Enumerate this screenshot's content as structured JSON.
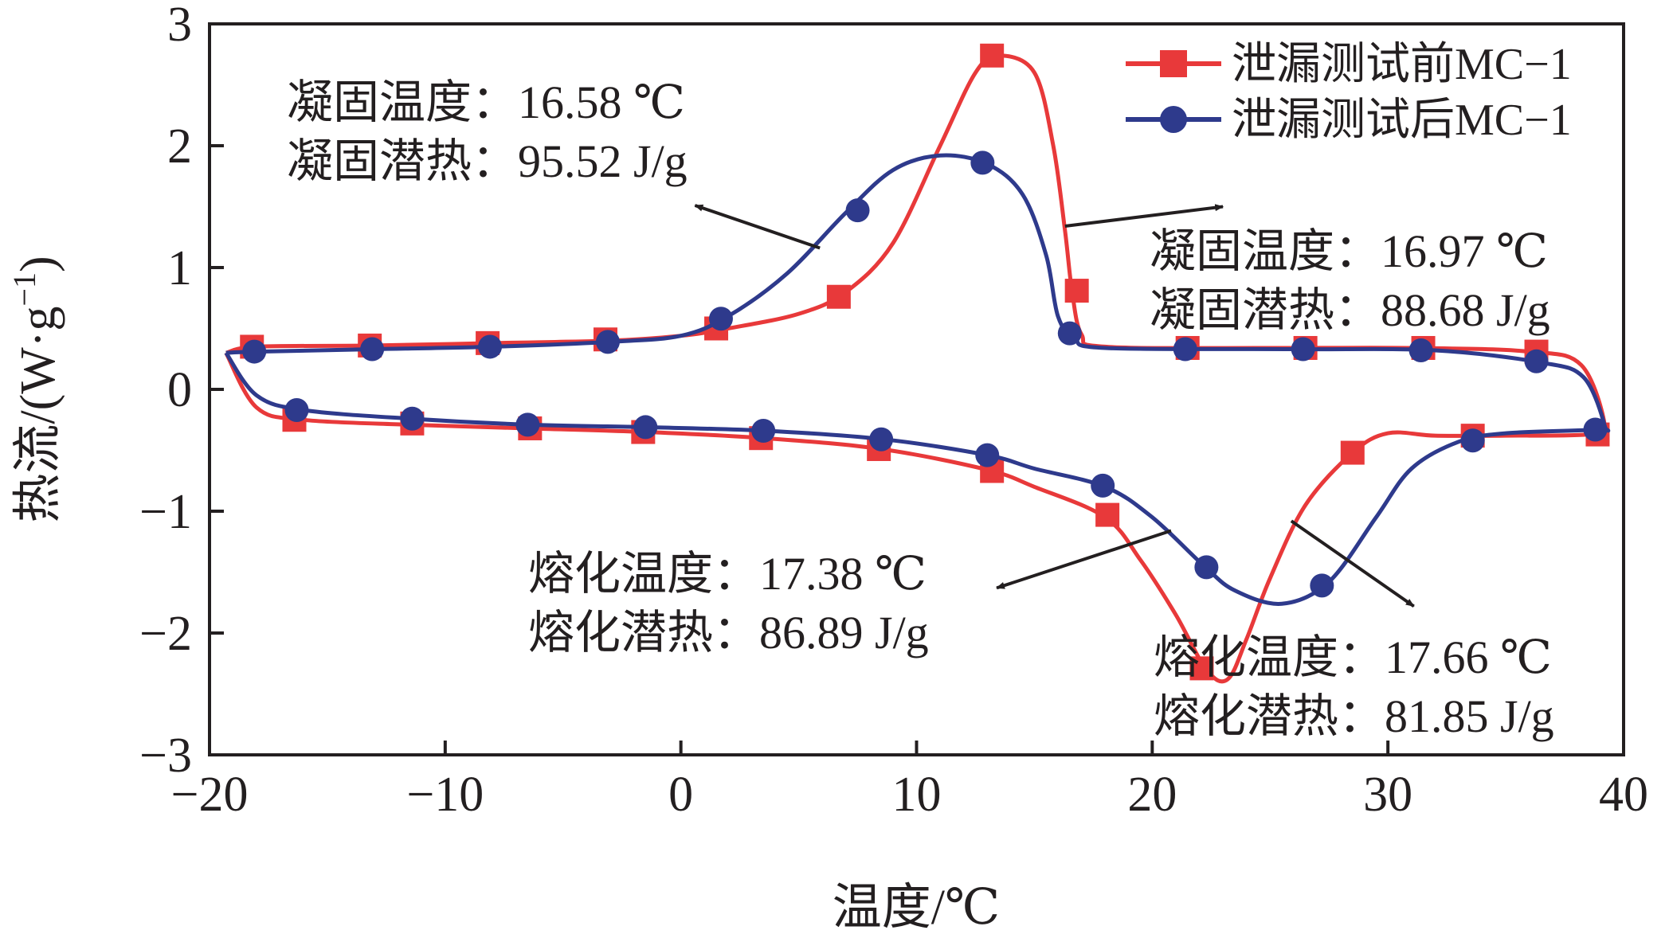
{
  "chart_data": {
    "type": "line",
    "xlabel": "温度/℃",
    "ylabel": "热流/(W·g",
    "ylabel_sup": "−1",
    "ylabel_tail": ")",
    "xlim": [
      -20,
      40
    ],
    "ylim": [
      -3,
      3
    ],
    "x_ticks": [
      -20,
      -10,
      0,
      10,
      20,
      30,
      40
    ],
    "x_tick_labels": [
      "−20",
      "−10",
      "0",
      "10",
      "20",
      "30",
      "40"
    ],
    "y_ticks": [
      -3,
      -2,
      -1,
      0,
      1,
      2,
      3
    ],
    "y_tick_labels": [
      "−3",
      "−2",
      "−1",
      "0",
      "1",
      "2",
      "3"
    ],
    "legend_position": "top-right",
    "series": [
      {
        "name": "泄漏测试前MC−1",
        "color": "#e8393a",
        "marker": "square",
        "curve": [
          [
            -19.3,
            0.3
          ],
          [
            -18,
            0.35
          ],
          [
            -13,
            0.36
          ],
          [
            -8,
            0.38
          ],
          [
            -3,
            0.4
          ],
          [
            0,
            0.44
          ],
          [
            2,
            0.5
          ],
          [
            5,
            0.62
          ],
          [
            7,
            0.8
          ],
          [
            9,
            1.2
          ],
          [
            11,
            2.0
          ],
          [
            12.5,
            2.6
          ],
          [
            13.5,
            2.74
          ],
          [
            15,
            2.6
          ],
          [
            15.8,
            2.0
          ],
          [
            16.3,
            1.3
          ],
          [
            16.6,
            0.8
          ],
          [
            17,
            0.45
          ],
          [
            18,
            0.35
          ],
          [
            25,
            0.34
          ],
          [
            31,
            0.34
          ],
          [
            36,
            0.31
          ],
          [
            38.2,
            0.2
          ],
          [
            39.2,
            -0.3
          ],
          [
            38.5,
            -0.37
          ],
          [
            35,
            -0.38
          ],
          [
            32,
            -0.38
          ],
          [
            30,
            -0.36
          ],
          [
            28.5,
            -0.52
          ],
          [
            26.5,
            -0.95
          ],
          [
            25,
            -1.55
          ],
          [
            24,
            -2.05
          ],
          [
            23.2,
            -2.38
          ],
          [
            22.3,
            -2.3
          ],
          [
            21,
            -1.85
          ],
          [
            19.5,
            -1.4
          ],
          [
            18,
            -1.05
          ],
          [
            15,
            -0.8
          ],
          [
            13,
            -0.66
          ],
          [
            8.5,
            -0.49
          ],
          [
            3.5,
            -0.4
          ],
          [
            -1.5,
            -0.35
          ],
          [
            -6.5,
            -0.32
          ],
          [
            -11.5,
            -0.29
          ],
          [
            -16,
            -0.25
          ],
          [
            -18,
            -0.15
          ],
          [
            -19.3,
            0.3
          ]
        ],
        "markers": [
          [
            -18.2,
            0.35
          ],
          [
            -13.2,
            0.36
          ],
          [
            -8.2,
            0.38
          ],
          [
            -3.2,
            0.41
          ],
          [
            1.5,
            0.5
          ],
          [
            6.7,
            0.76
          ],
          [
            13.2,
            2.74
          ],
          [
            16.8,
            0.81
          ],
          [
            21.5,
            0.34
          ],
          [
            26.5,
            0.34
          ],
          [
            31.5,
            0.34
          ],
          [
            36.3,
            0.31
          ],
          [
            38.9,
            -0.37
          ],
          [
            33.6,
            -0.38
          ],
          [
            28.5,
            -0.52
          ],
          [
            22.1,
            -2.29
          ],
          [
            18.1,
            -1.03
          ],
          [
            13.2,
            -0.67
          ],
          [
            8.4,
            -0.49
          ],
          [
            3.4,
            -0.4
          ],
          [
            -1.6,
            -0.35
          ],
          [
            -6.4,
            -0.32
          ],
          [
            -11.4,
            -0.28
          ],
          [
            -16.4,
            -0.25
          ]
        ]
      },
      {
        "name": "泄漏测试后MC−1",
        "color": "#2e3a8c",
        "marker": "circle",
        "curve": [
          [
            -19.3,
            0.3
          ],
          [
            -18,
            0.31
          ],
          [
            -13,
            0.33
          ],
          [
            -8,
            0.35
          ],
          [
            -3,
            0.39
          ],
          [
            0,
            0.44
          ],
          [
            2,
            0.6
          ],
          [
            4.5,
            0.95
          ],
          [
            7,
            1.45
          ],
          [
            9,
            1.8
          ],
          [
            11,
            1.92
          ],
          [
            13,
            1.85
          ],
          [
            14.5,
            1.6
          ],
          [
            15.5,
            1.1
          ],
          [
            16,
            0.6
          ],
          [
            16.7,
            0.42
          ],
          [
            18,
            0.34
          ],
          [
            26,
            0.33
          ],
          [
            32,
            0.32
          ],
          [
            36.5,
            0.22
          ],
          [
            38.3,
            0.1
          ],
          [
            39.2,
            -0.3
          ],
          [
            38.9,
            -0.33
          ],
          [
            35,
            -0.36
          ],
          [
            33,
            -0.43
          ],
          [
            31,
            -0.65
          ],
          [
            29.5,
            -1.05
          ],
          [
            27.5,
            -1.58
          ],
          [
            25.5,
            -1.76
          ],
          [
            23.5,
            -1.65
          ],
          [
            22.2,
            -1.45
          ],
          [
            20,
            -1.05
          ],
          [
            18,
            -0.8
          ],
          [
            15,
            -0.65
          ],
          [
            13,
            -0.54
          ],
          [
            8.6,
            -0.41
          ],
          [
            3.6,
            -0.34
          ],
          [
            -1.6,
            -0.31
          ],
          [
            -6.4,
            -0.29
          ],
          [
            -11.5,
            -0.24
          ],
          [
            -16,
            -0.17
          ],
          [
            -18,
            -0.05
          ],
          [
            -19.3,
            0.3
          ]
        ],
        "markers": [
          [
            -18.1,
            0.31
          ],
          [
            -13.1,
            0.33
          ],
          [
            -8.1,
            0.35
          ],
          [
            -3.1,
            0.39
          ],
          [
            1.7,
            0.58
          ],
          [
            7.5,
            1.47
          ],
          [
            12.8,
            1.86
          ],
          [
            16.5,
            0.46
          ],
          [
            21.4,
            0.33
          ],
          [
            26.4,
            0.33
          ],
          [
            31.4,
            0.32
          ],
          [
            36.3,
            0.23
          ],
          [
            38.8,
            -0.33
          ],
          [
            33.6,
            -0.42
          ],
          [
            27.2,
            -1.61
          ],
          [
            22.3,
            -1.46
          ],
          [
            17.9,
            -0.79
          ],
          [
            13,
            -0.54
          ],
          [
            8.5,
            -0.41
          ],
          [
            3.5,
            -0.34
          ],
          [
            -1.5,
            -0.31
          ],
          [
            -6.5,
            -0.29
          ],
          [
            -11.4,
            -0.24
          ],
          [
            -16.3,
            -0.17
          ]
        ]
      }
    ],
    "annotations": [
      {
        "lines": [
          "凝固温度：16.58 ℃",
          "凝固潜热：95.52 J/g"
        ],
        "arrow": [
          [
            5.9,
            1.16
          ],
          [
            0.6,
            1.51
          ]
        ]
      },
      {
        "lines": [
          "凝固温度：16.97 ℃",
          "凝固潜热：88.68 J/g"
        ],
        "arrow": [
          [
            16.3,
            1.34
          ],
          [
            23.0,
            1.5
          ]
        ]
      },
      {
        "lines": [
          "熔化温度：17.38 ℃",
          "熔化潜热：86.89 J/g"
        ],
        "arrow": [
          [
            20.8,
            -1.16
          ],
          [
            13.4,
            -1.63
          ]
        ]
      },
      {
        "lines": [
          "熔化温度：17.66 ℃",
          "熔化潜热：81.85 J/g"
        ],
        "arrow": [
          [
            25.9,
            -1.08
          ],
          [
            31.1,
            -1.78
          ]
        ]
      }
    ]
  }
}
